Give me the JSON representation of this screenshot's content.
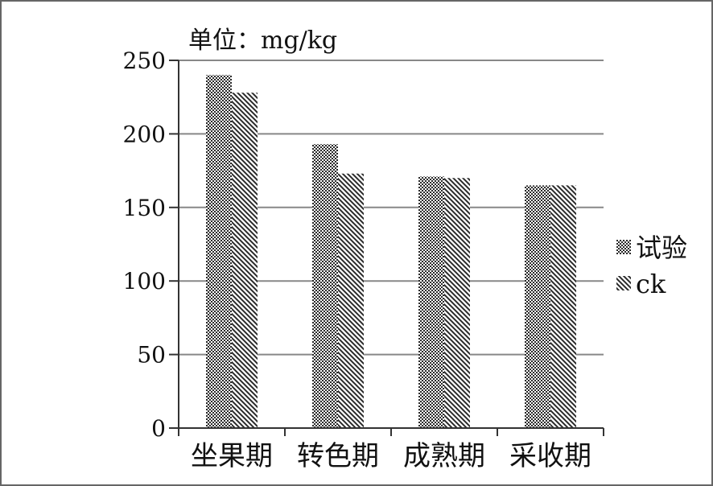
{
  "chart_data": {
    "type": "bar",
    "unit_label": "单位：mg/kg",
    "categories": [
      "坐果期",
      "转色期",
      "成熟期",
      "采收期"
    ],
    "series": [
      {
        "name": "试验",
        "values": [
          240,
          193,
          171,
          165
        ]
      },
      {
        "name": "ck",
        "values": [
          228,
          173,
          170,
          165
        ]
      }
    ],
    "ylim": [
      0,
      250
    ],
    "yticks": [
      0,
      50,
      100,
      150,
      200,
      250
    ],
    "grid": true,
    "legend": "right",
    "colors": {
      "series_1": "#303030",
      "series_2": "#303030",
      "grid": "#888888",
      "axis": "#333333"
    }
  }
}
